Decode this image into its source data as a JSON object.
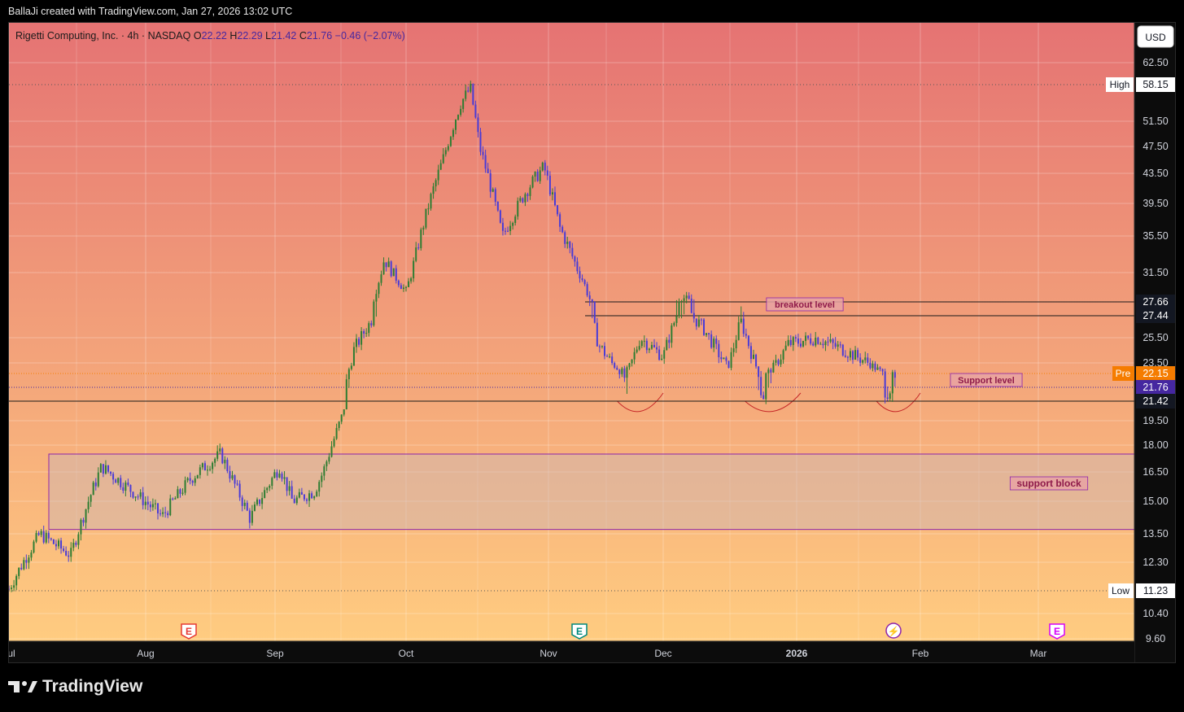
{
  "header": {
    "attribution": "BallaJi created with TradingView.com, Jan 27, 2026 13:02 UTC"
  },
  "legend": {
    "symbol": "Rigetti Computing, Inc. · 4h · NASDAQ",
    "o_label": "O",
    "o_value": "22.22",
    "h_label": "H",
    "h_value": "22.29",
    "l_label": "L",
    "l_value": "21.42",
    "c_label": "C",
    "c_value": "21.76",
    "change": "−0.46 (−2.07%)"
  },
  "currency_button": "USD",
  "footer": {
    "brand": "TradingView"
  },
  "colors": {
    "bg_top": "#e57373",
    "bg_bottom": "#ffcc80",
    "candle_up": "#2e7d32",
    "candle_down": "#4a3bd6",
    "accent_purple": "#8e24aa",
    "pre_orange": "#f57c00",
    "close_label": "#4527a0"
  },
  "chart_data": {
    "type": "candlestick",
    "timeframe": "4h",
    "ylim": [
      9.6,
      66
    ],
    "y_ticks": [
      "62.50",
      "51.50",
      "47.50",
      "43.50",
      "39.50",
      "35.50",
      "31.50",
      "25.50",
      "23.50",
      "19.50",
      "18.00",
      "16.50",
      "15.00",
      "13.50",
      "12.30",
      "10.40",
      "9.60"
    ],
    "x_ticks": [
      "Jul",
      "Aug",
      "Sep",
      "Oct",
      "Nov",
      "Dec",
      "2026",
      "Feb",
      "Mar"
    ],
    "price_labels": {
      "high_label": "High",
      "high_value": "58.15",
      "low_label": "Low",
      "low_value": "11.23",
      "breakout_upper": "27.66",
      "breakout_lower": "27.44",
      "pre_label": "Pre",
      "pre_value": "22.15",
      "close_value": "21.76",
      "support_value": "21.42"
    },
    "annotations": {
      "breakout": "breakout level",
      "support_level": "Support level",
      "support_block": "support block",
      "support_block_range": [
        13.7,
        17.5
      ]
    },
    "close_path": [
      [
        "Jul 1",
        11.3
      ],
      [
        "Jul 8",
        13.5
      ],
      [
        "Jul 15",
        12.6
      ],
      [
        "Jul 22",
        16.8
      ],
      [
        "Jul 29",
        15.5
      ],
      [
        "Aug 5",
        14.3
      ],
      [
        "Aug 12",
        16.2
      ],
      [
        "Aug 19",
        17.5
      ],
      [
        "Aug 22",
        16.0
      ],
      [
        "Aug 26",
        14.2
      ],
      [
        "Sep 2",
        16.8
      ],
      [
        "Sep 5",
        15.0
      ],
      [
        "Sep 10",
        15.5
      ],
      [
        "Sep 12",
        16.5
      ],
      [
        "Sep 16",
        19.5
      ],
      [
        "Sep 19",
        24.5
      ],
      [
        "Sep 23",
        27.0
      ],
      [
        "Sep 26",
        33.0
      ],
      [
        "Oct 1",
        29.0
      ],
      [
        "Oct 6",
        39.5
      ],
      [
        "Oct 9",
        45.5
      ],
      [
        "Oct 13",
        55.0
      ],
      [
        "Oct 15",
        57.5
      ],
      [
        "Oct 17",
        47.5
      ],
      [
        "Oct 22",
        35.5
      ],
      [
        "Oct 27",
        41.0
      ],
      [
        "Oct 31",
        44.5
      ],
      [
        "Nov 4",
        36.5
      ],
      [
        "Nov 10",
        30.5
      ],
      [
        "Nov 14",
        25.0
      ],
      [
        "Nov 21",
        22.0
      ],
      [
        "Nov 25",
        25.5
      ],
      [
        "Dec 1",
        24.0
      ],
      [
        "Dec 5",
        28.5
      ],
      [
        "Dec 10",
        26.5
      ],
      [
        "Dec 16",
        23.0
      ],
      [
        "Dec 19",
        27.0
      ],
      [
        "Dec 24",
        21.5
      ],
      [
        "Dec 30",
        25.0
      ],
      [
        "Jan 6",
        25.5
      ],
      [
        "Jan 13",
        24.5
      ],
      [
        "Jan 19",
        23.5
      ],
      [
        "Jan 23",
        22.0
      ],
      [
        "Jan 26",
        21.76
      ]
    ]
  },
  "events": {
    "earnings": "E",
    "dividend": "E",
    "split": "⚡",
    "upcoming_earnings": "E"
  }
}
